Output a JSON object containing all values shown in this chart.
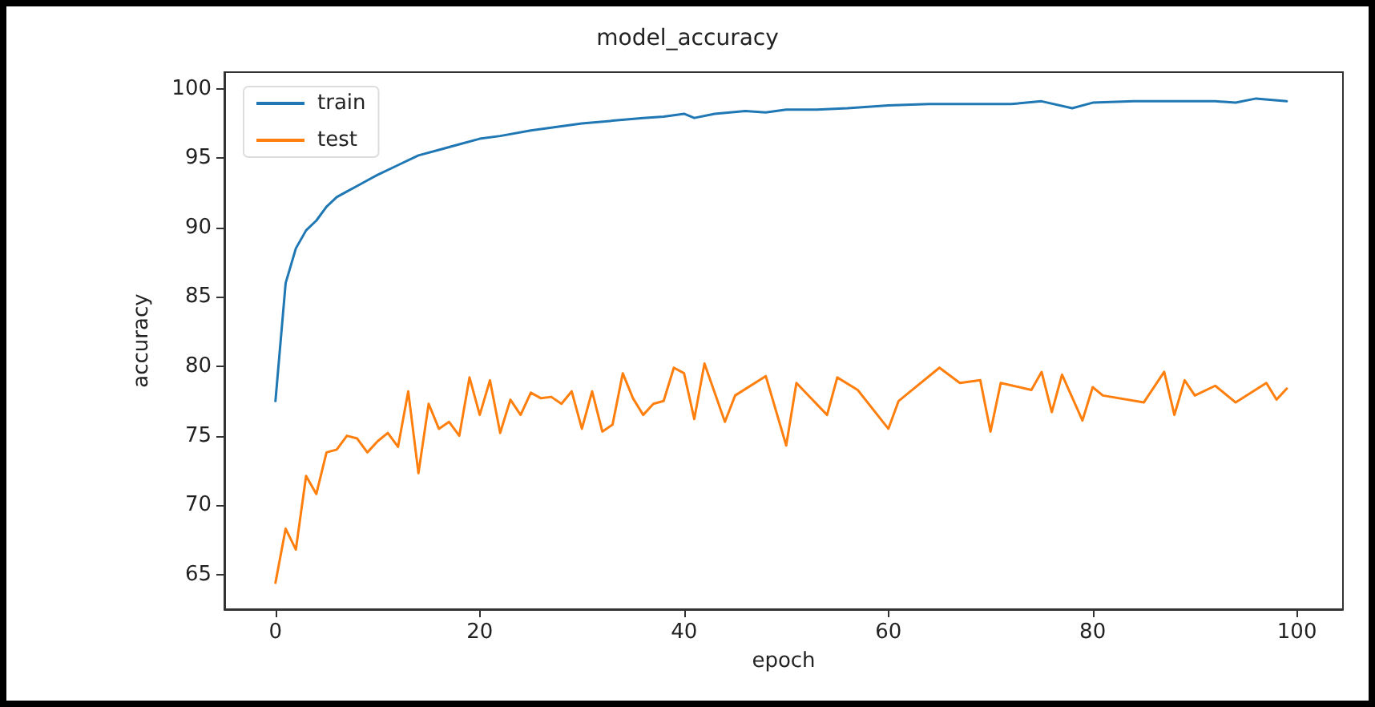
{
  "chart_data": {
    "type": "line",
    "title": "model_accuracy",
    "xlabel": "epoch",
    "ylabel": "accuracy",
    "xlim": [
      -5,
      104.5
    ],
    "ylim": [
      62.5,
      101.2
    ],
    "xticks": [
      0,
      20,
      40,
      60,
      80,
      100
    ],
    "yticks": [
      65,
      70,
      75,
      80,
      85,
      90,
      95,
      100
    ],
    "grid": false,
    "legend": "top left",
    "marker": "none",
    "line_style": "solid",
    "series": [
      {
        "name": "train",
        "color": "#1f77b4",
        "x": [
          0,
          1,
          2,
          3,
          4,
          5,
          6,
          7,
          8,
          9,
          10,
          12,
          14,
          16,
          18,
          20,
          22,
          25,
          28,
          30,
          33,
          36,
          38,
          40,
          41,
          43,
          46,
          48,
          50,
          53,
          56,
          60,
          64,
          68,
          72,
          75,
          78,
          80,
          84,
          88,
          92,
          94,
          96,
          99
        ],
        "values": [
          77.5,
          86,
          88.5,
          89.8,
          90.5,
          91.5,
          92.2,
          92.6,
          93,
          93.4,
          93.8,
          94.5,
          95.2,
          95.6,
          96,
          96.4,
          96.6,
          97,
          97.3,
          97.5,
          97.7,
          97.9,
          98,
          98.2,
          97.9,
          98.2,
          98.4,
          98.3,
          98.5,
          98.5,
          98.6,
          98.8,
          98.9,
          98.9,
          98.9,
          99.1,
          98.6,
          99,
          99.1,
          99.1,
          99.1,
          99,
          99.3,
          99.1
        ]
      },
      {
        "name": "test",
        "color": "#ff7f0e",
        "x": [
          0,
          1,
          2,
          3,
          4,
          5,
          6,
          7,
          8,
          9,
          10,
          11,
          12,
          13,
          14,
          15,
          16,
          17,
          18,
          19,
          20,
          21,
          22,
          23,
          24,
          25,
          26,
          27,
          28,
          29,
          30,
          31,
          32,
          33,
          34,
          35,
          36,
          37,
          38,
          39,
          40,
          41,
          42,
          44,
          45,
          48,
          50,
          51,
          54,
          55,
          57,
          60,
          61,
          62,
          65,
          67,
          69,
          70,
          71,
          74,
          75,
          76,
          77,
          79,
          80,
          81,
          85,
          87,
          88,
          89,
          90,
          92,
          94,
          97,
          98,
          99
        ],
        "values": [
          64.4,
          68.3,
          66.8,
          72.1,
          70.8,
          73.8,
          74,
          75,
          74.8,
          73.8,
          74.6,
          75.2,
          74.2,
          78.2,
          72.3,
          77.3,
          75.5,
          76,
          75,
          79.2,
          76.5,
          79,
          75.2,
          77.6,
          76.5,
          78.1,
          77.7,
          77.8,
          77.3,
          78.2,
          75.5,
          78.2,
          75.3,
          75.8,
          79.5,
          77.7,
          76.5,
          77.3,
          77.5,
          79.9,
          79.5,
          76.2,
          80.2,
          76,
          77.9,
          79.3,
          74.3,
          78.8,
          76.5,
          79.2,
          78.3,
          75.5,
          77.5,
          78.1,
          79.9,
          78.8,
          79,
          75.3,
          78.8,
          78.3,
          79.6,
          76.7,
          79.4,
          76.1,
          78.5,
          77.9,
          77.4,
          79.6,
          76.5,
          79,
          77.9,
          78.6,
          77.4,
          78.8,
          77.6,
          78.4
        ]
      }
    ]
  }
}
